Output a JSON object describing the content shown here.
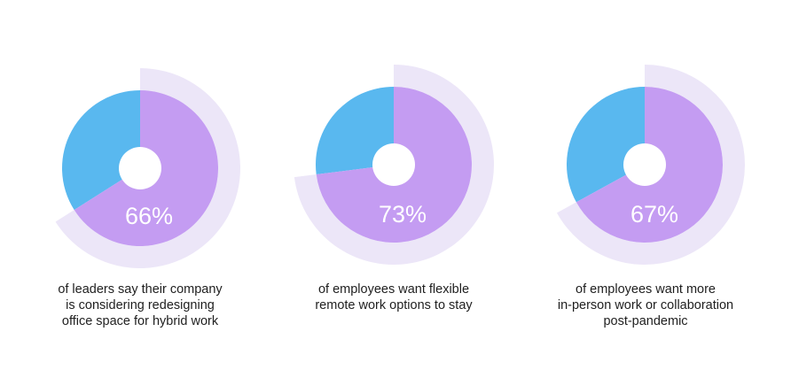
{
  "colors": {
    "purple": "#c49cf2",
    "blue": "#59b8ef",
    "ring": "#ece6f8",
    "hole": "#ffffff",
    "text": "#1f1f1f"
  },
  "chart_data": [
    {
      "type": "pie",
      "value": 66,
      "label": "66%",
      "caption_lines": [
        "of leaders say their company",
        "is considering redesigning",
        "office space for hybrid work"
      ]
    },
    {
      "type": "pie",
      "value": 73,
      "label": "73%",
      "caption_lines": [
        "of employees want flexible",
        "remote work options to stay"
      ]
    },
    {
      "type": "pie",
      "value": 67,
      "label": "67%",
      "caption_lines": [
        "of employees want more",
        "in-person work or collaboration",
        "post-pandemic"
      ]
    }
  ]
}
